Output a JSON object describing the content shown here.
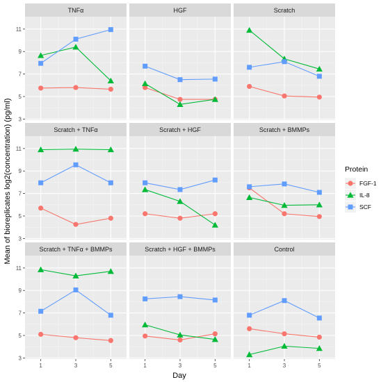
{
  "chart_data": {
    "type": "line",
    "xlabel": "Day",
    "ylabel": "Mean of bioreplicates log2(concentration) (pg/ml)",
    "x": [
      1,
      3,
      5
    ],
    "x_ticks": [
      "1",
      "3",
      "5"
    ],
    "ylim": [
      3,
      12
    ],
    "y_ticks": [
      "3",
      "5",
      "7",
      "9",
      "11"
    ],
    "grid": true,
    "legend": {
      "title": "Protein",
      "position": "right",
      "entries": [
        "FGF-1",
        "IL-8",
        "SCF"
      ]
    },
    "colors": {
      "FGF-1": "#F8766D",
      "IL-8": "#00BA38",
      "SCF": "#619CFF",
      "panel_bg": "#EBEBEB",
      "strip_bg": "#D9D9D9"
    },
    "panels": [
      {
        "title": "TNFα",
        "series": [
          {
            "name": "FGF-1",
            "values": [
              5.75,
              5.8,
              5.65
            ]
          },
          {
            "name": "IL-8",
            "values": [
              8.65,
              9.4,
              6.4
            ]
          },
          {
            "name": "SCF",
            "values": [
              7.95,
              10.1,
              10.95
            ]
          }
        ]
      },
      {
        "title": "HGF",
        "series": [
          {
            "name": "FGF-1",
            "values": [
              5.8,
              4.75,
              4.75
            ]
          },
          {
            "name": "IL-8",
            "values": [
              6.15,
              4.3,
              4.75
            ]
          },
          {
            "name": "SCF",
            "values": [
              7.7,
              6.5,
              6.55
            ]
          }
        ]
      },
      {
        "title": "Scratch",
        "series": [
          {
            "name": "FGF-1",
            "values": [
              5.9,
              5.05,
              4.95
            ]
          },
          {
            "name": "IL-8",
            "values": [
              10.9,
              8.35,
              7.45
            ]
          },
          {
            "name": "SCF",
            "values": [
              7.6,
              8.1,
              6.8
            ]
          }
        ]
      },
      {
        "title": "Scratch + TNFα",
        "series": [
          {
            "name": "FGF-1",
            "values": [
              5.7,
              4.25,
              4.8
            ]
          },
          {
            "name": "IL-8",
            "values": [
              10.9,
              10.95,
              10.9
            ]
          },
          {
            "name": "SCF",
            "values": [
              7.95,
              9.55,
              7.95
            ]
          }
        ]
      },
      {
        "title": "Scratch + HGF",
        "series": [
          {
            "name": "FGF-1",
            "values": [
              5.2,
              4.8,
              5.2
            ]
          },
          {
            "name": "IL-8",
            "values": [
              7.35,
              6.3,
              4.2
            ]
          },
          {
            "name": "SCF",
            "values": [
              7.95,
              7.35,
              8.2
            ]
          }
        ]
      },
      {
        "title": "Scratch + BMMPs",
        "series": [
          {
            "name": "FGF-1",
            "values": [
              7.5,
              5.2,
              4.95
            ]
          },
          {
            "name": "IL-8",
            "values": [
              6.65,
              5.95,
              6.0
            ]
          },
          {
            "name": "SCF",
            "values": [
              7.6,
              7.85,
              7.1
            ]
          }
        ]
      },
      {
        "title": "Scratch + TNFα + BMMPs",
        "series": [
          {
            "name": "FGF-1",
            "values": [
              5.1,
              4.8,
              4.55
            ]
          },
          {
            "name": "IL-8",
            "values": [
              10.85,
              10.3,
              10.7
            ]
          },
          {
            "name": "SCF",
            "values": [
              7.15,
              9.05,
              6.8
            ]
          }
        ]
      },
      {
        "title": "Scratch + HGF + BMMPs",
        "series": [
          {
            "name": "FGF-1",
            "values": [
              4.95,
              4.6,
              5.15
            ]
          },
          {
            "name": "IL-8",
            "values": [
              5.95,
              5.05,
              4.65
            ]
          },
          {
            "name": "SCF",
            "values": [
              8.25,
              8.45,
              8.15
            ]
          }
        ]
      },
      {
        "title": "Control",
        "series": [
          {
            "name": "FGF-1",
            "values": [
              5.6,
              5.15,
              4.85
            ]
          },
          {
            "name": "IL-8",
            "values": [
              3.3,
              4.05,
              3.85
            ]
          },
          {
            "name": "SCF",
            "values": [
              6.8,
              8.1,
              6.55
            ]
          }
        ]
      }
    ]
  }
}
